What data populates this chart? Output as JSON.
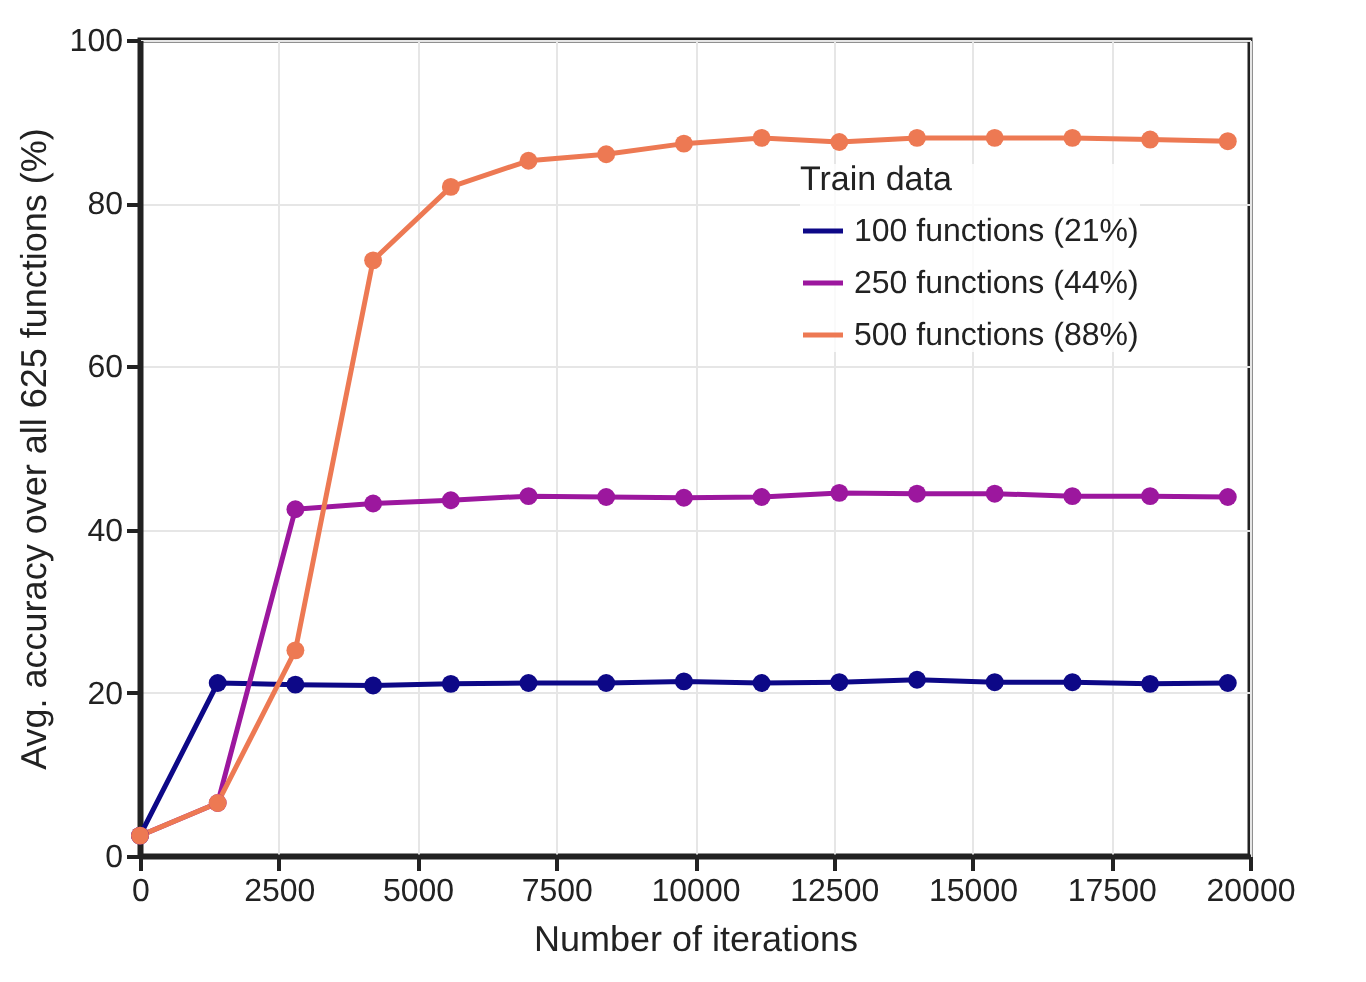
{
  "chart_data": {
    "type": "line",
    "xlabel": "Number of iterations",
    "ylabel": "Avg. accuracy over all 625 functions (%)",
    "legend_title": "Train data",
    "legend": "top right",
    "grid": true,
    "marker": "circle",
    "line_style": "solid",
    "x": [
      0,
      1400,
      2800,
      4200,
      5600,
      7000,
      8400,
      9800,
      11200,
      12600,
      14000,
      15400,
      16800,
      18200,
      19600
    ],
    "xlim": [
      0,
      20000
    ],
    "xticks": [
      0,
      2500,
      5000,
      7500,
      10000,
      12500,
      15000,
      17500,
      20000
    ],
    "ylim": [
      0,
      100
    ],
    "yticks": [
      0,
      20,
      40,
      60,
      80,
      100
    ],
    "series": [
      {
        "name": "100 functions (21%)",
        "color": "#0d0887",
        "values": [
          2.5,
          21.2,
          21.0,
          20.9,
          21.1,
          21.2,
          21.2,
          21.4,
          21.2,
          21.3,
          21.6,
          21.3,
          21.3,
          21.1,
          21.2
        ]
      },
      {
        "name": "250 functions (44%)",
        "color": "#9c179e",
        "values": [
          2.5,
          6.5,
          42.5,
          43.2,
          43.6,
          44.1,
          44.0,
          43.9,
          44.0,
          44.5,
          44.4,
          44.4,
          44.1,
          44.1,
          44.0
        ]
      },
      {
        "name": "500 functions (88%)",
        "color": "#ed7953",
        "values": [
          2.5,
          6.5,
          25.2,
          73,
          82,
          85.2,
          86,
          87.3,
          88,
          87.5,
          88,
          88,
          88,
          87.8,
          87.6
        ]
      }
    ]
  }
}
